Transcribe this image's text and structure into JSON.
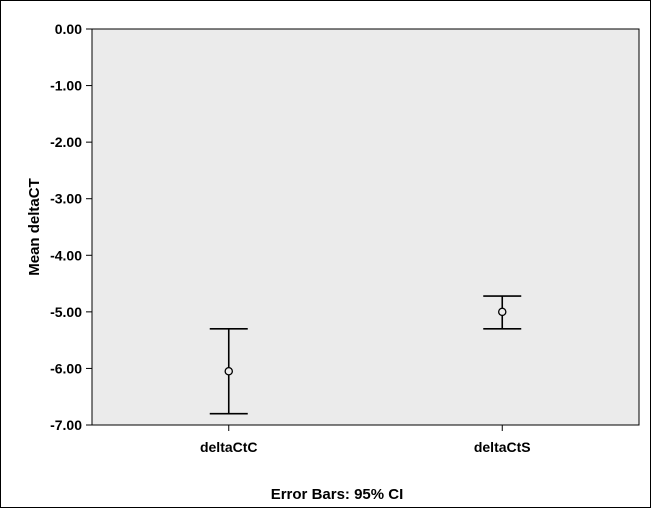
{
  "chart_data": {
    "type": "scatter",
    "title": "",
    "xlabel": "",
    "ylabel": "Mean deltaCT",
    "footnote": "Error Bars: 95% CI",
    "categories": [
      "deltaCtC",
      "deltaCtS"
    ],
    "series": [
      {
        "means": [
          -6.05,
          -5.0
        ],
        "ci_lower": [
          -6.8,
          -5.3
        ],
        "ci_upper": [
          -5.3,
          -4.72
        ]
      }
    ],
    "ylim": [
      -7.0,
      0.0
    ],
    "yticks": [
      0,
      -1,
      -2,
      -3,
      -4,
      -5,
      -6,
      -7
    ],
    "ytick_labels": [
      "0.00",
      "-1.00",
      "-2.00",
      "-3.00",
      "-4.00",
      "-5.00",
      "-6.00",
      "-7.00"
    ],
    "grid": false,
    "legend": "none",
    "colors": {
      "plot_background": "#ebebeb",
      "marks": "#000000"
    }
  }
}
